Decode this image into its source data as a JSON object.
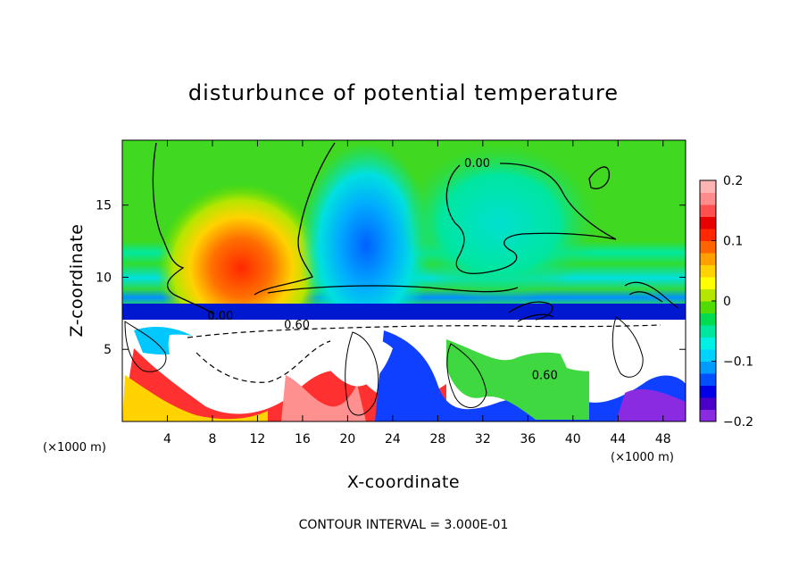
{
  "chart_data": {
    "type": "heatmap",
    "title": "disturbunce of potential temperature",
    "xlabel": "X-coordinate",
    "ylabel": "Z-coordinate",
    "x_unit": "(×1000 m)",
    "z_unit": "(×1000 m)",
    "xlim": [
      0,
      50
    ],
    "ylim": [
      0,
      19.5
    ],
    "x_ticks": [
      4,
      8,
      12,
      16,
      20,
      24,
      28,
      32,
      36,
      40,
      44,
      48
    ],
    "y_ticks": [
      5,
      10,
      15
    ],
    "colorbar": {
      "range": [
        -0.2,
        0.2
      ],
      "ticks": [
        {
          "value": 0.2,
          "label": "0.2"
        },
        {
          "value": 0.1,
          "label": "0.1"
        },
        {
          "value": 0,
          "label": "0"
        },
        {
          "value": -0.1,
          "label": "−0.1"
        },
        {
          "value": -0.2,
          "label": "−0.2"
        }
      ],
      "colors": [
        "#8a2be2",
        "#4b00c8",
        "#0000e6",
        "#0050ff",
        "#009bff",
        "#00d2ff",
        "#00f0e6",
        "#00e6a0",
        "#00dc50",
        "#50dc00",
        "#b4e600",
        "#ffff00",
        "#ffd200",
        "#ffa000",
        "#ff6400",
        "#ff2800",
        "#e60000",
        "#ff5050",
        "#ff8c8c",
        "#ffb4b4"
      ]
    },
    "contour_labels": [
      {
        "text": "0.00",
        "x": 31.5,
        "z": 17.9
      },
      {
        "text": "0.00",
        "x": 8.7,
        "z": 7.3
      },
      {
        "text": "0.60",
        "x": 15.5,
        "z": 6.7
      },
      {
        "text": "0.60",
        "x": 37.5,
        "z": 3.2
      }
    ],
    "footer": "CONTOUR INTERVAL = 3.000E-01"
  }
}
